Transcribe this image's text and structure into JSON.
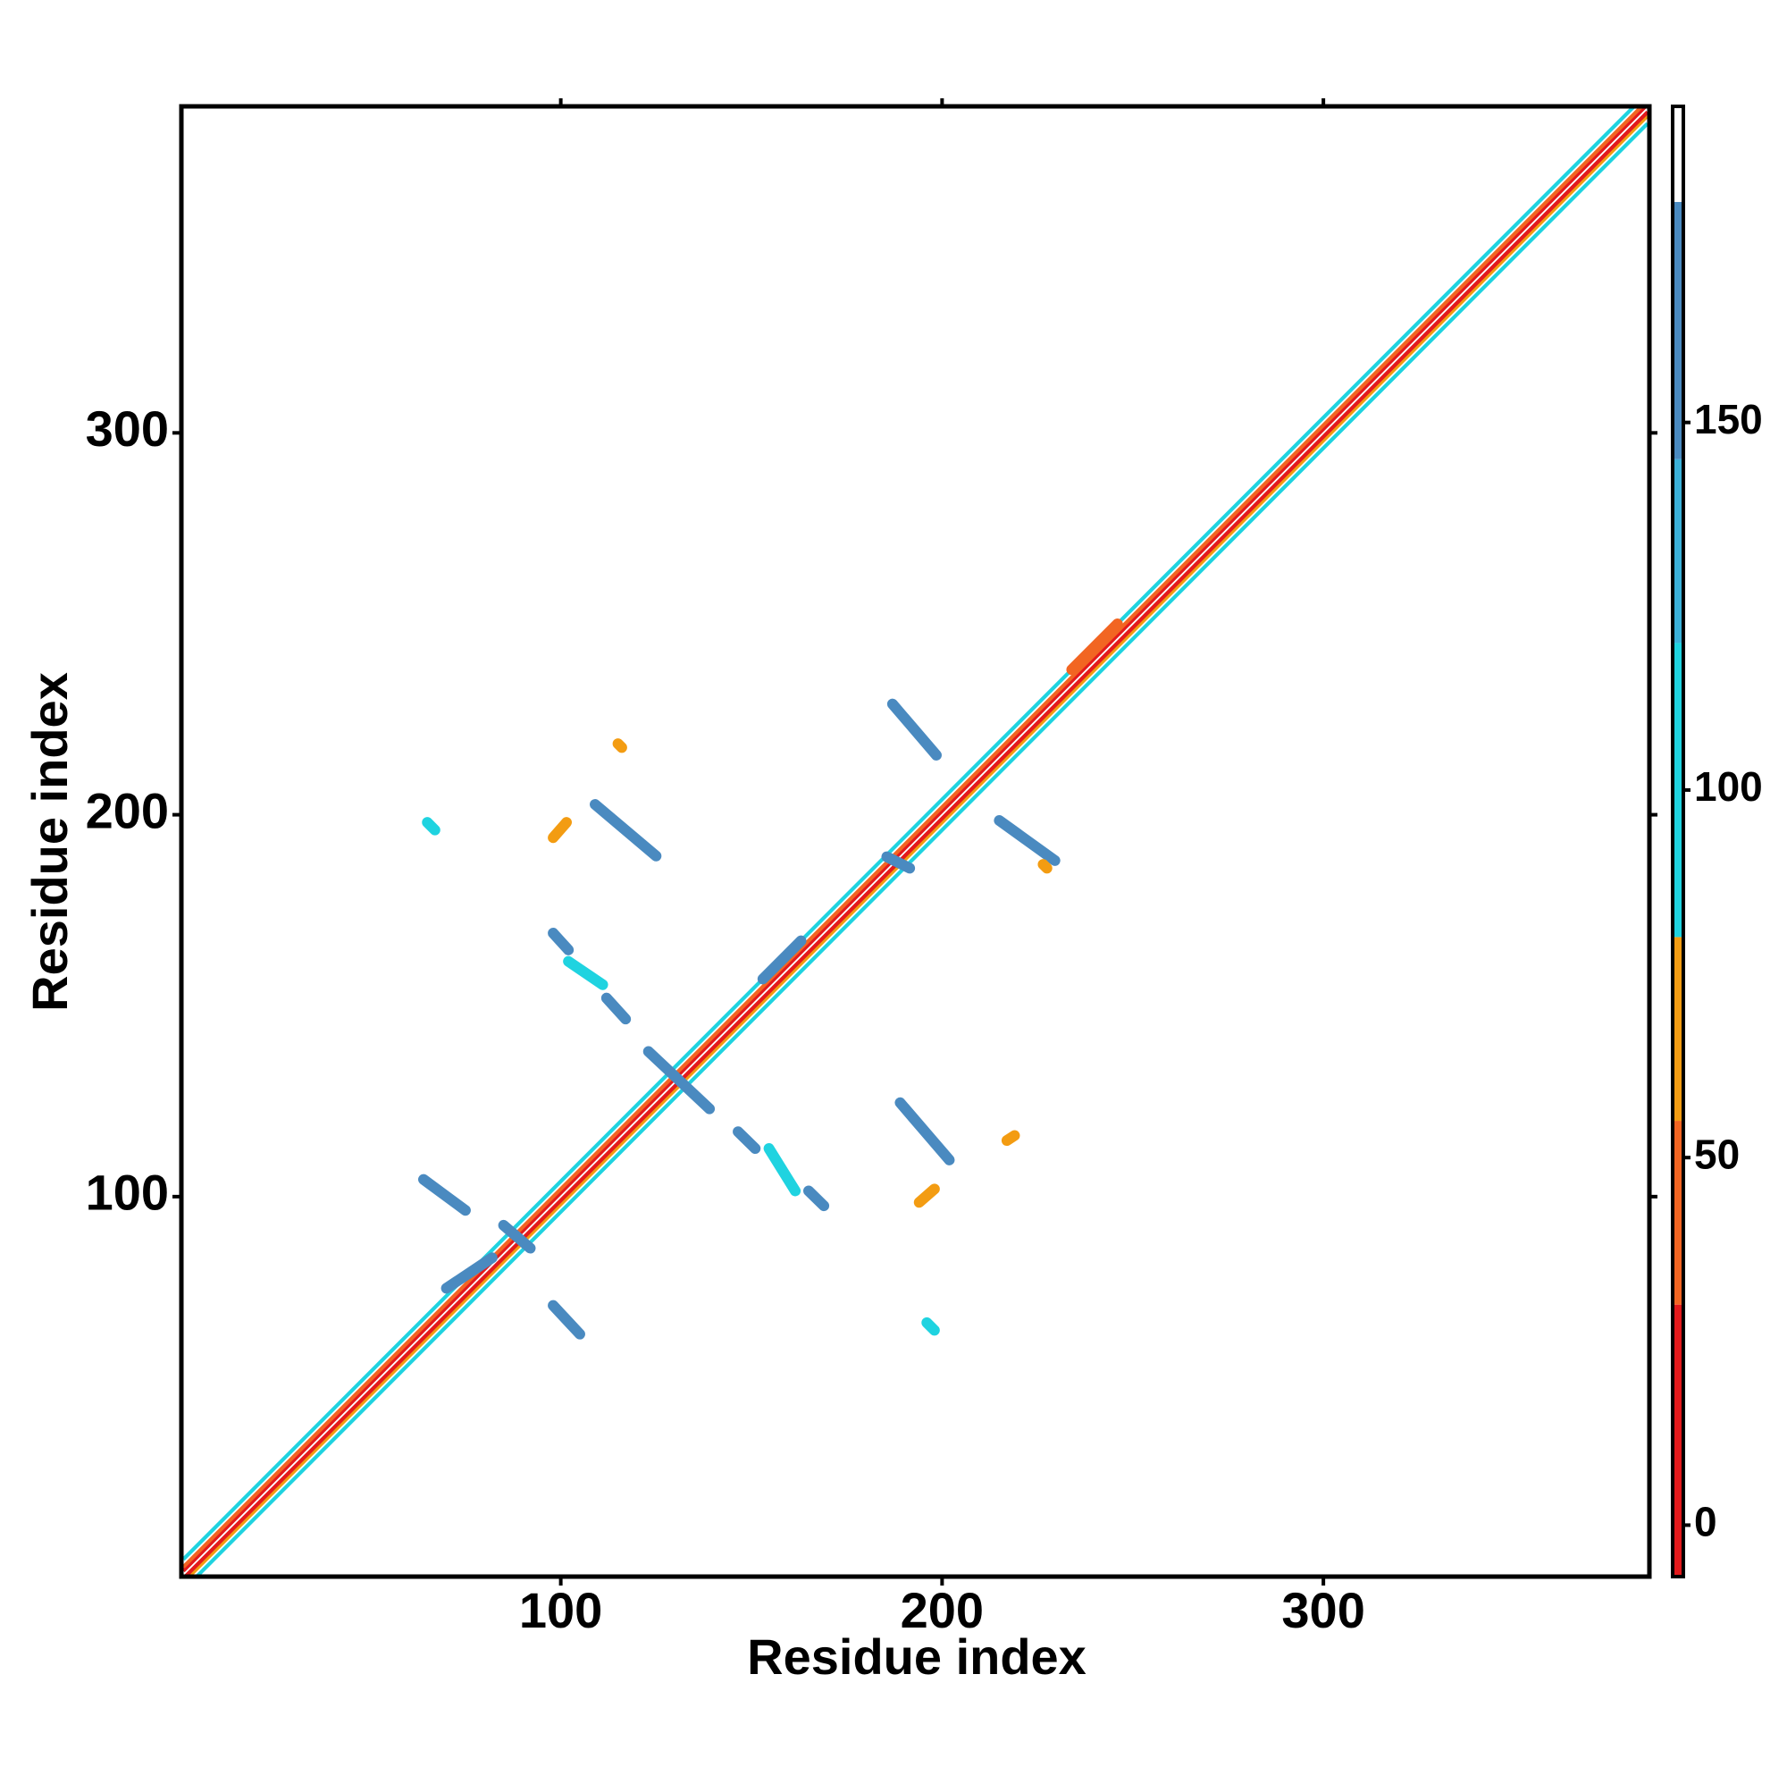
{
  "chart_data": {
    "type": "contact-map",
    "xlabel": "Residue index",
    "ylabel": "Residue index",
    "xlim": [
      0.5,
      385.5
    ],
    "ylim": [
      0.5,
      385.5
    ],
    "xticks": [
      100,
      200,
      300
    ],
    "yticks": [
      100,
      200,
      300
    ],
    "diagonal": [
      {
        "x": [
          1,
          385
        ],
        "y": [
          -3,
          381
        ],
        "value": 110
      },
      {
        "x": [
          1,
          385
        ],
        "y": [
          -1,
          383
        ],
        "value": 65
      },
      {
        "x": [
          1,
          385
        ],
        "y": [
          0,
          384
        ],
        "value": 10
      },
      {
        "x": [
          1,
          385
        ],
        "y": [
          2,
          386
        ],
        "value": 10
      },
      {
        "x": [
          1,
          385
        ],
        "y": [
          3,
          387
        ],
        "value": 45
      },
      {
        "x": [
          1,
          385
        ],
        "y": [
          5,
          389
        ],
        "value": 110
      }
    ],
    "contacts": [
      {
        "x": [
          109,
          125
        ],
        "y": [
          202.7,
          189.2
        ],
        "value": 160
      },
      {
        "x": [
          98,
          102
        ],
        "y": [
          169,
          164.6
        ],
        "value": 160
      },
      {
        "x": [
          102,
          111
        ],
        "y": [
          161.6,
          155.5
        ],
        "value": 110
      },
      {
        "x": [
          112,
          117
        ],
        "y": [
          152,
          146.5
        ],
        "value": 155
      },
      {
        "x": [
          123,
          139
        ],
        "y": [
          138,
          123
        ],
        "value": 150
      },
      {
        "x": [
          64,
          75
        ],
        "y": [
          104.5,
          96.4
        ],
        "value": 155
      },
      {
        "x": [
          85,
          92
        ],
        "y": [
          92.5,
          86.5
        ],
        "value": 155
      },
      {
        "x": [
          98,
          105
        ],
        "y": [
          71.5,
          64
        ],
        "value": 155
      },
      {
        "x": [
          65,
          67
        ],
        "y": [
          198,
          196
        ],
        "value": 110
      },
      {
        "x": [
          115,
          116
        ],
        "y": [
          218.6,
          217.6
        ],
        "value": 55
      },
      {
        "x": [
          98,
          101.5
        ],
        "y": [
          194,
          198
        ],
        "value": 60
      },
      {
        "x": [
          187,
          198.5
        ],
        "y": [
          229,
          215.6
        ],
        "value": 150
      },
      {
        "x": [
          185.5,
          191.5
        ],
        "y": [
          189,
          186
        ],
        "value": 150
      },
      {
        "x": [
          215,
          229.6
        ],
        "y": [
          198.5,
          188
        ],
        "value": 155
      },
      {
        "x": [
          226.5,
          227.5
        ],
        "y": [
          187,
          186
        ],
        "value": 55
      },
      {
        "x": [
          146.5,
          151
        ],
        "y": [
          117,
          112.6
        ],
        "value": 155
      },
      {
        "x": [
          154.6,
          161.5
        ],
        "y": [
          112.6,
          101.5
        ],
        "value": 110
      },
      {
        "x": [
          165,
          169
        ],
        "y": [
          101.5,
          97.6
        ],
        "value": 155
      },
      {
        "x": [
          189,
          201.9
        ],
        "y": [
          124.6,
          109.6
        ],
        "value": 150
      },
      {
        "x": [
          194,
          198
        ],
        "y": [
          98.5,
          102
        ],
        "value": 60
      },
      {
        "x": [
          217,
          219
        ],
        "y": [
          114.7,
          116
        ],
        "value": 60
      },
      {
        "x": [
          196,
          198
        ],
        "y": [
          67,
          65
        ],
        "value": 110
      },
      {
        "x": [
          70,
          82
        ],
        "y": [
          76,
          84
        ],
        "value": 150
      },
      {
        "x": [
          234,
          246
        ],
        "y": [
          238,
          250
        ],
        "value": 45
      },
      {
        "x": [
          153,
          163
        ],
        "y": [
          157,
          167
        ],
        "value": 150
      }
    ],
    "colorbar": {
      "bins": [
        -7,
        30,
        55,
        80,
        120,
        145,
        180,
        193
      ],
      "colors": [
        "#e31a1c",
        "#f26522",
        "#f39c12",
        "#1fd3e0",
        "#3bb0d8",
        "#4a8ac0",
        "#ffffff"
      ],
      "ylim": [
        -7,
        193
      ],
      "yticks": [
        0,
        50,
        100,
        150
      ]
    }
  }
}
